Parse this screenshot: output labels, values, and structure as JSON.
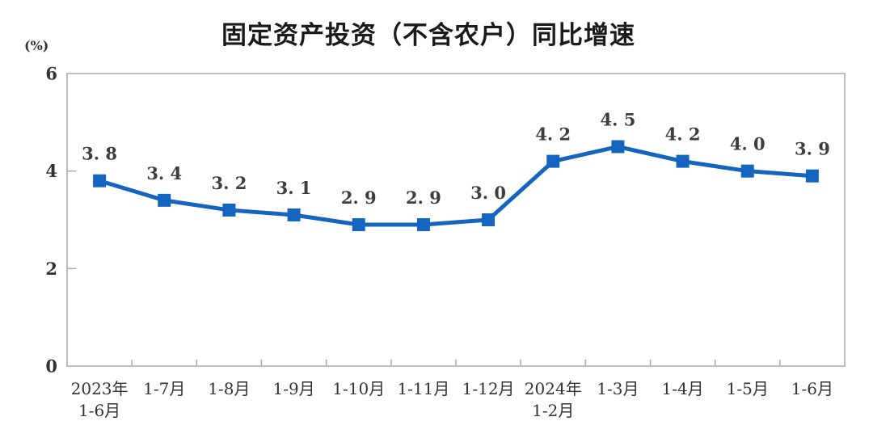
{
  "chart_data": {
    "type": "line",
    "title": "固定资产投资（不含农户）同比增速",
    "unit_label": "(%)",
    "categories": [
      [
        "2023年",
        "1-6月"
      ],
      [
        "1-7月"
      ],
      [
        "1-8月"
      ],
      [
        "1-9月"
      ],
      [
        "1-10月"
      ],
      [
        "1-11月"
      ],
      [
        "1-12月"
      ],
      [
        "2024年",
        "1-2月"
      ],
      [
        "1-3月"
      ],
      [
        "1-4月"
      ],
      [
        "1-5月"
      ],
      [
        "1-6月"
      ]
    ],
    "values": [
      3.8,
      3.4,
      3.2,
      3.1,
      2.9,
      2.9,
      3.0,
      4.2,
      4.5,
      4.2,
      4.0,
      3.9
    ],
    "point_labels": [
      "3. 8",
      "3. 4",
      "3. 2",
      "3. 1",
      "2. 9",
      "2. 9",
      "3. 0",
      "4. 2",
      "4. 5",
      "4. 2",
      "4. 0",
      "3. 9"
    ],
    "y_ticks": [
      0,
      2,
      4,
      6
    ],
    "ylim": [
      0,
      6
    ],
    "xlabel": "",
    "ylabel": "(%)",
    "grid": false,
    "legend": "none",
    "line_color": "#1565C0",
    "marker_color": "#1565C0",
    "axis_color": "#ababab",
    "tick_text_color": "#333333",
    "label_text_color": "#3d3d3d"
  }
}
